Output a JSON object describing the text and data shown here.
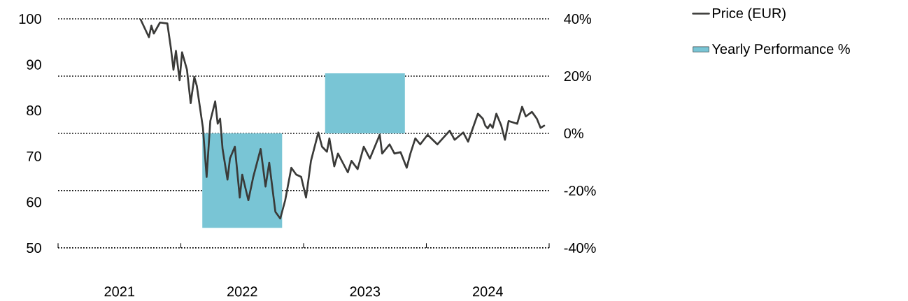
{
  "chart_data": {
    "type": "line",
    "x": [
      2021.67,
      2021.74,
      2021.76,
      2021.78,
      2021.83,
      2021.89,
      2021.92,
      2021.94,
      2021.96,
      2021.99,
      2022.01,
      2022.05,
      2022.08,
      2022.11,
      2022.13,
      2022.18,
      2022.21,
      2022.24,
      2022.28,
      2022.3,
      2022.32,
      2022.34,
      2022.38,
      2022.4,
      2022.44,
      2022.48,
      2022.5,
      2022.55,
      2022.59,
      2022.65,
      2022.69,
      2022.72,
      2022.77,
      2022.81,
      2022.85,
      2022.9,
      2022.94,
      2022.98,
      2023.02,
      2023.06,
      2023.12,
      2023.15,
      2023.19,
      2023.21,
      2023.25,
      2023.28,
      2023.36,
      2023.39,
      2023.44,
      2023.49,
      2023.54,
      2023.62,
      2023.64,
      2023.7,
      2023.74,
      2023.79,
      2023.84,
      2023.87,
      2023.91,
      2023.95,
      2024.01,
      2024.09,
      2024.19,
      2024.23,
      2024.3,
      2024.34,
      2024.42,
      2024.46,
      2024.48,
      2024.5,
      2024.52,
      2024.54,
      2024.57,
      2024.61,
      2024.64,
      2024.67,
      2024.74,
      2024.78,
      2024.81,
      2024.86,
      2024.9,
      2024.93,
      2024.96
    ],
    "series": [
      {
        "name": "Price (EUR)",
        "color": "#3a3a38",
        "values": [
          100,
          96,
          98.5,
          96.8,
          99.2,
          99,
          93.4,
          88.9,
          93,
          86.6,
          92.7,
          88.9,
          81.6,
          87.3,
          85.4,
          76.2,
          65.5,
          77.7,
          82,
          77.1,
          78.2,
          71.6,
          64.9,
          69.5,
          72.1,
          61,
          66,
          60.4,
          65.5,
          71.6,
          63.4,
          68.6,
          57.9,
          56.4,
          60.4,
          67.5,
          66,
          65.5,
          61,
          69,
          75.2,
          72.1,
          71,
          73.9,
          67.8,
          70.6,
          66.5,
          69,
          67.2,
          72.1,
          69.5,
          74.7,
          70.6,
          72.6,
          70.6,
          70.9,
          67.5,
          70.6,
          73.9,
          72.6,
          74.7,
          72.6,
          75.6,
          73.6,
          75.2,
          73.2,
          79.3,
          78.2,
          76.7,
          76.1,
          77.0,
          76.2,
          79.3,
          76.7,
          73.6,
          77.7,
          77.1,
          80.8,
          78.7,
          79.7,
          78.2,
          76.2,
          76.7
        ]
      },
      {
        "name": "Yearly Performance %",
        "type": "bar",
        "axis": "y2",
        "color": "#79c5d5",
        "x": [
          2022.5,
          2023.5
        ],
        "values": [
          -33,
          21
        ]
      }
    ],
    "xlim": [
      2021,
      2025
    ],
    "xticks": [
      {
        "value": 2021,
        "label": null
      },
      {
        "value": 2021.5,
        "label": "2021"
      },
      {
        "value": 2022,
        "label": null
      },
      {
        "value": 2022.5,
        "label": "2022"
      },
      {
        "value": 2023,
        "label": null
      },
      {
        "value": 2023.5,
        "label": "2023"
      },
      {
        "value": 2024,
        "label": null
      },
      {
        "value": 2024.5,
        "label": "2024"
      },
      {
        "value": 2025,
        "label": null
      }
    ],
    "ylim": [
      50,
      100
    ],
    "yticks": [
      50,
      60,
      70,
      80,
      90,
      100
    ],
    "y2lim": [
      -40,
      40
    ],
    "y2ticks": [
      {
        "value": -40,
        "label": "-40%"
      },
      {
        "value": -20,
        "label": "-20%"
      },
      {
        "value": 0,
        "label": "0%"
      },
      {
        "value": 20,
        "label": "20%"
      },
      {
        "value": 40,
        "label": "40%"
      }
    ],
    "grid": "y",
    "legend": "right"
  }
}
